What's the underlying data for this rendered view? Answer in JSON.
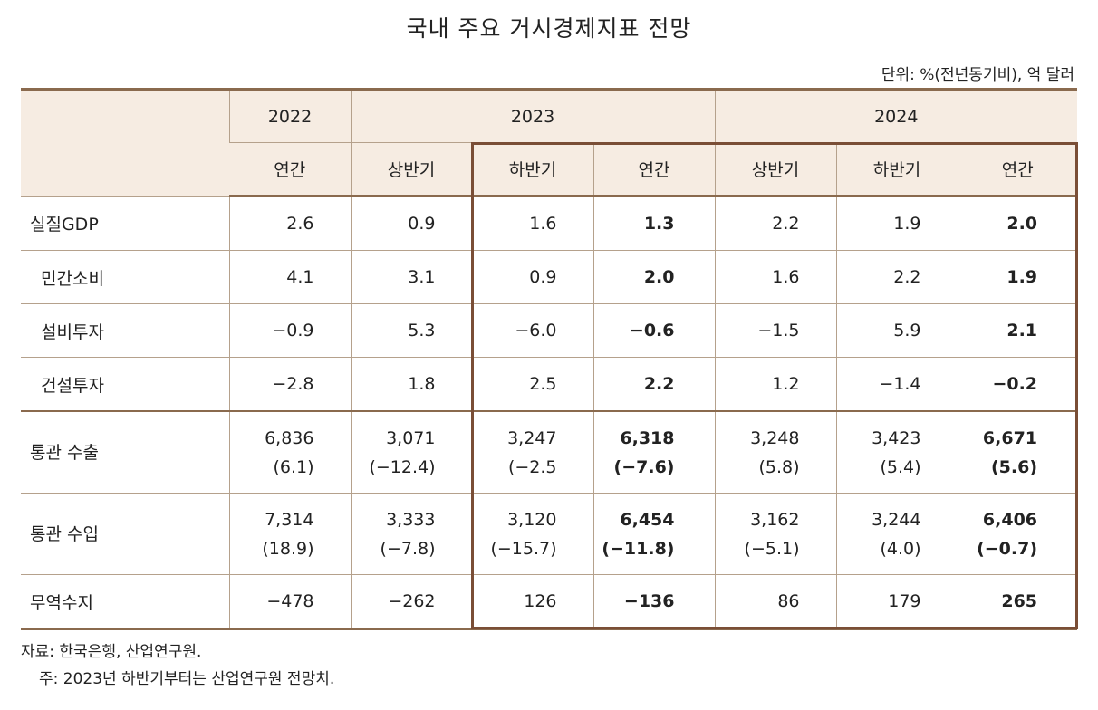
{
  "title": "국내 주요 거시경제지표 전망",
  "unit": "단위: %(전년동기비), 억 달러",
  "header": {
    "years": [
      "2022",
      "2023",
      "2024"
    ],
    "periods": [
      "연간",
      "상반기",
      "하반기",
      "연간",
      "상반기",
      "하반기",
      "연간"
    ]
  },
  "rows": [
    {
      "label": "실질GDP",
      "values": [
        "2.6",
        "0.9",
        "1.6",
        "1.3",
        "2.2",
        "1.9",
        "2.0"
      ]
    },
    {
      "label": "민간소비",
      "values": [
        "4.1",
        "3.1",
        "0.9",
        "2.0",
        "1.6",
        "2.2",
        "1.9"
      ]
    },
    {
      "label": "설비투자",
      "values": [
        "−0.9",
        "5.3",
        "−6.0",
        "−0.6",
        "−1.5",
        "5.9",
        "2.1"
      ]
    },
    {
      "label": "건설투자",
      "values": [
        "−2.8",
        "1.8",
        "2.5",
        "2.2",
        "1.2",
        "−1.4",
        "−0.2"
      ]
    },
    {
      "label": "통관 수출",
      "values": [
        "6,836",
        "3,071",
        "3,247",
        "6,318",
        "3,248",
        "3,423",
        "6,671"
      ],
      "sub": [
        "(6.1)",
        "(−12.4)",
        "(−2.5",
        "(−7.6)",
        "(5.8)",
        "(5.4)",
        "(5.6)"
      ]
    },
    {
      "label": "통관 수입",
      "values": [
        "7,314",
        "3,333",
        "3,120",
        "6,454",
        "3,162",
        "3,244",
        "6,406"
      ],
      "sub": [
        "(18.9)",
        "(−7.8)",
        "(−15.7)",
        "(−11.8)",
        "(−5.1)",
        "(4.0)",
        "(−0.7)"
      ]
    },
    {
      "label": "무역수지",
      "values": [
        "−478",
        "−262",
        "126",
        "−136",
        "86",
        "179",
        "265"
      ]
    }
  ],
  "notes": {
    "source": "자료: 한국은행, 산업연구원.",
    "note": "주: 2023년 하반기부터는 산업연구원 전망치."
  },
  "colors": {
    "header_bg": "#f6ece2",
    "rule": "#8a6a4e",
    "forecast_box": "#7a4e36"
  }
}
